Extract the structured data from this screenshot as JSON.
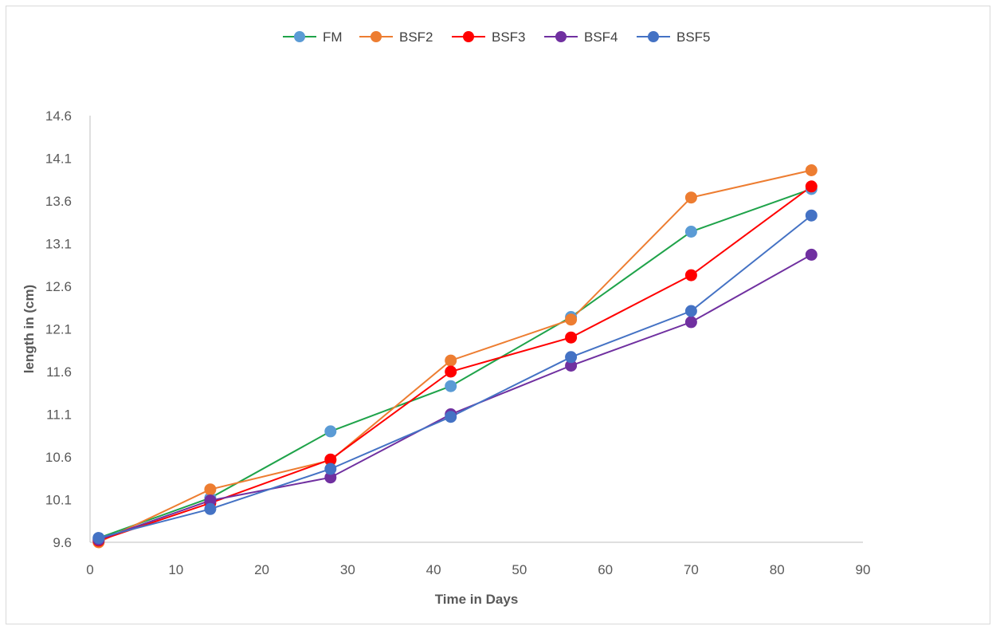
{
  "chart_data": {
    "type": "line",
    "xlabel": "Time in Days",
    "ylabel": "length in (cm)",
    "xlim": [
      0,
      90
    ],
    "ylim": [
      9.6,
      14.6
    ],
    "xticks": [
      0,
      10,
      20,
      30,
      40,
      50,
      60,
      70,
      80,
      90
    ],
    "yticks": [
      9.6,
      10.1,
      10.6,
      11.1,
      11.6,
      12.1,
      12.6,
      13.1,
      13.6,
      14.1,
      14.6
    ],
    "ytick_labels": [
      "9.6",
      "10.1",
      "10.6",
      "11.1",
      "11.6",
      "12.1",
      "12.6",
      "13.1",
      "13.6",
      "14.1",
      "14.6"
    ],
    "grid": false,
    "legend_position": "top",
    "x": [
      1,
      14,
      28,
      42,
      56,
      70,
      84
    ],
    "series": [
      {
        "name": "FM",
        "line_color": "#1fa34a",
        "marker_color": "#5b9bd5",
        "values": [
          9.65,
          10.12,
          10.9,
          11.43,
          12.24,
          13.24,
          13.74
        ]
      },
      {
        "name": "BSF2",
        "line_color": "#ed7d31",
        "marker_color": "#ed7d31",
        "values": [
          9.6,
          10.22,
          10.56,
          11.73,
          12.21,
          13.64,
          13.96
        ]
      },
      {
        "name": "BSF3",
        "line_color": "#ff0000",
        "marker_color": "#ff0000",
        "values": [
          9.62,
          10.06,
          10.57,
          11.6,
          12.0,
          12.73,
          13.77
        ]
      },
      {
        "name": "BSF4",
        "line_color": "#7030a0",
        "marker_color": "#7030a0",
        "values": [
          9.63,
          10.09,
          10.36,
          11.1,
          11.67,
          12.18,
          12.97
        ]
      },
      {
        "name": "BSF5",
        "line_color": "#4472c4",
        "marker_color": "#4472c4",
        "values": [
          9.65,
          9.99,
          10.46,
          11.07,
          11.77,
          12.31,
          13.43
        ]
      }
    ]
  }
}
